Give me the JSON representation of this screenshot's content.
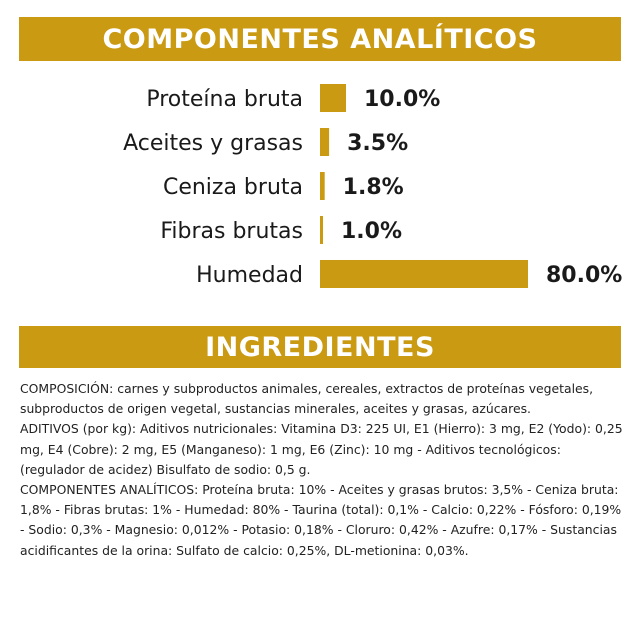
{
  "sections": {
    "analytic_title": "COMPONENTES ANALÍTICOS",
    "ingredients_title": "INGREDIENTES"
  },
  "chart_data": {
    "type": "bar",
    "orientation": "horizontal",
    "categories": [
      "Proteína bruta",
      "Aceites y grasas",
      "Ceniza bruta",
      "Fibras brutas",
      "Humedad"
    ],
    "values": [
      10.0,
      3.5,
      1.8,
      1.0,
      80.0
    ],
    "value_labels": [
      "10.0%",
      "3.5%",
      "1.8%",
      "1.0%",
      "80.0%"
    ],
    "bar_color": "#c99a12",
    "title": "COMPONENTES ANALÍTICOS",
    "xlabel": "",
    "ylabel": "",
    "grid": false
  },
  "ingredients": {
    "composicion": "COMPOSICIÓN: carnes y subproductos animales, cereales, extractos de proteínas vegetales, subproductos de origen vegetal, sustancias minerales, aceites y grasas, azúcares.",
    "aditivos": "ADITIVOS (por kg): Aditivos nutricionales: Vitamina D3: 225 UI, E1 (Hierro): 3 mg, E2 (Yodo): 0,25 mg, E4 (Cobre): 2 mg, E5 (Manganeso): 1 mg, E6 (Zinc): 10 mg - Aditivos tecnológicos: (regulador de acidez) Bisulfato de sodio: 0,5 g.",
    "componentes": "COMPONENTES ANALÍTICOS: Proteína bruta: 10% - Aceites y grasas brutos: 3,5% - Ceniza bruta: 1,8% - Fibras brutas: 1% - Humedad: 80% - Taurina (total): 0,1% - Calcio: 0,22% - Fósforo: 0,19% - Sodio: 0,3% - Magnesio: 0,012% - Potasio: 0,18% - Cloruro: 0,42% - Azufre: 0,17% - Sustancias acidificantes de la orina: Sulfato de calcio: 0,25%, DL-metionina: 0,03%."
  }
}
